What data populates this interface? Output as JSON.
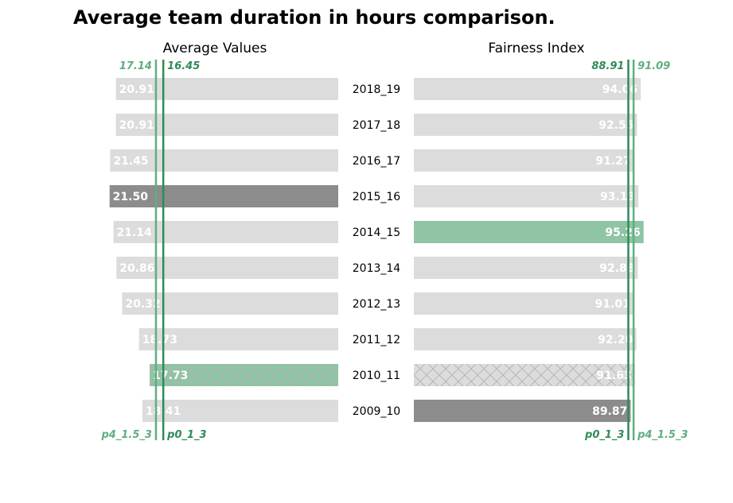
{
  "title": "Average team duration in hours comparison.",
  "colors": {
    "bar_default": "#dcdcdc",
    "bar_dark": "#8c8c8c",
    "bar_green": "#8fc4a4",
    "line_dark_green": "#2e8b57",
    "line_light_green": "#5fae80",
    "hatch": "#b0b0b0"
  },
  "chart_data": {
    "type": "bar",
    "orientation": "horizontal-butterfly",
    "categories": [
      "2018_19",
      "2017_18",
      "2016_17",
      "2015_16",
      "2014_15",
      "2013_14",
      "2012_13",
      "2011_12",
      "2010_11",
      "2009_10"
    ],
    "panels": [
      {
        "title": "Average Values",
        "direction": "left",
        "values": [
          20.91,
          20.91,
          21.45,
          21.5,
          21.14,
          20.86,
          20.32,
          18.73,
          17.73,
          18.41
        ],
        "labels": [
          "20.91",
          "20.91",
          "21.45",
          "21.50",
          "21.14",
          "20.86",
          "20.32",
          "18.73",
          "17.73",
          "18.41"
        ],
        "styles": [
          "default",
          "default",
          "default",
          "dark",
          "default",
          "default",
          "default",
          "default",
          "green-hatched",
          "default"
        ],
        "xlim": [
          0,
          22
        ],
        "reference_lines": [
          {
            "name": "p4_1.5_3",
            "value": 17.14,
            "label": "17.14",
            "color": "light"
          },
          {
            "name": "p0_1_3",
            "value": 16.45,
            "label": "16.45",
            "color": "dark"
          }
        ]
      },
      {
        "title": "Fairness Index",
        "direction": "right",
        "values": [
          94.06,
          92.55,
          91.27,
          93.13,
          95.26,
          92.88,
          91.01,
          92.2,
          91.63,
          89.87
        ],
        "labels": [
          "94.06",
          "92.55",
          "91.27",
          "93.13",
          "95.26",
          "92.88",
          "91.01",
          "92.20",
          "91.63",
          "89.87"
        ],
        "styles": [
          "default",
          "default",
          "default",
          "default",
          "green",
          "default",
          "default",
          "default",
          "gray-hatched",
          "dark"
        ],
        "xlim": [
          0,
          97
        ],
        "reference_lines": [
          {
            "name": "p0_1_3",
            "value": 88.91,
            "label": "88.91",
            "color": "dark"
          },
          {
            "name": "p4_1.5_3",
            "value": 91.09,
            "label": "91.09",
            "color": "light"
          }
        ]
      }
    ]
  }
}
